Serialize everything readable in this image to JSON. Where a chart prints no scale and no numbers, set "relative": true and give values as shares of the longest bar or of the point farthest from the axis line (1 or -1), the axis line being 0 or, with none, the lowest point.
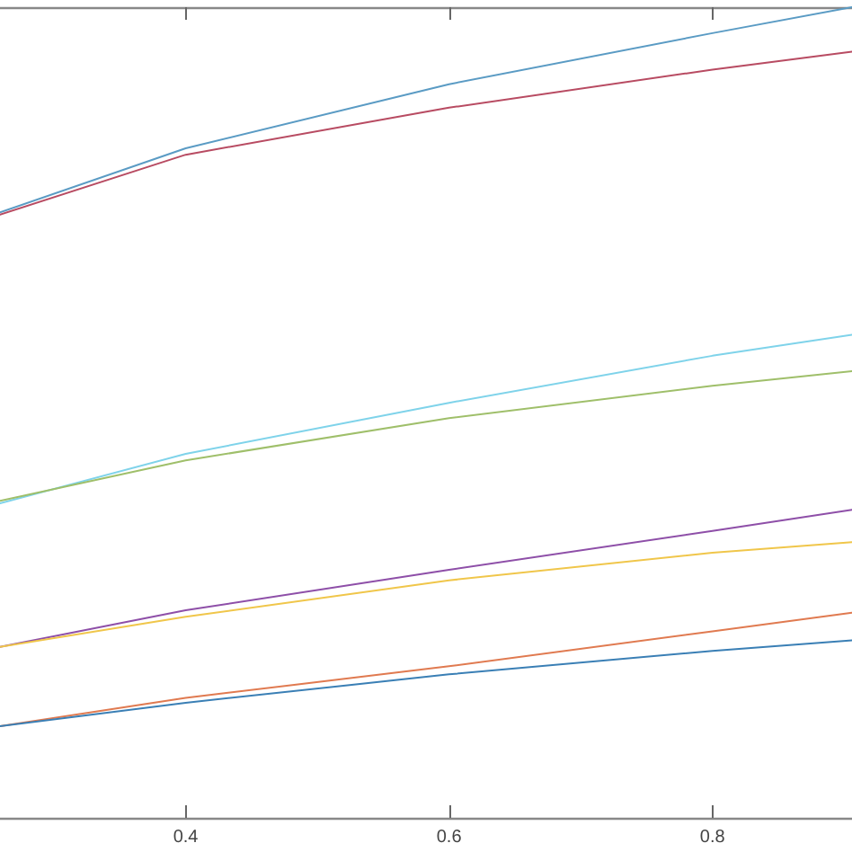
{
  "chart_data": {
    "type": "line",
    "relative": true,
    "grid": false,
    "marker": "none",
    "line_style": "solid",
    "xlim": [
      0.259,
      0.906
    ],
    "xticks": [
      0.4,
      0.6,
      0.8
    ],
    "series": [
      {
        "color": "#5a9bc4",
        "x": [
          0.259,
          0.4,
          0.6,
          0.8,
          0.906
        ],
        "values": [
          0.747,
          0.826,
          0.905,
          0.968,
          1
        ]
      },
      {
        "color": "#b84b62",
        "x": [
          0.259,
          0.4,
          0.6,
          0.8,
          0.906
        ],
        "values": [
          0.744,
          0.818,
          0.876,
          0.923,
          0.945
        ]
      },
      {
        "color": "#7fd3ea",
        "x": [
          0.259,
          0.4,
          0.6,
          0.8,
          0.906
        ],
        "values": [
          0.388,
          0.449,
          0.512,
          0.57,
          0.596
        ]
      },
      {
        "color": "#9fbf6a",
        "x": [
          0.259,
          0.4,
          0.6,
          0.8,
          0.906
        ],
        "values": [
          0.391,
          0.441,
          0.493,
          0.533,
          0.551
        ]
      },
      {
        "color": "#8e4fa8",
        "x": [
          0.259,
          0.4,
          0.6,
          0.8,
          0.906
        ],
        "values": [
          0.211,
          0.256,
          0.306,
          0.354,
          0.38
        ]
      },
      {
        "color": "#f0c64a",
        "x": [
          0.259,
          0.4,
          0.6,
          0.8,
          0.906
        ],
        "values": [
          0.211,
          0.248,
          0.293,
          0.327,
          0.34
        ]
      },
      {
        "color": "#e07a50",
        "x": [
          0.259,
          0.4,
          0.6,
          0.8,
          0.906
        ],
        "values": [
          0.113,
          0.148,
          0.187,
          0.23,
          0.253
        ]
      },
      {
        "color": "#3a7fb5",
        "x": [
          0.259,
          0.4,
          0.6,
          0.8,
          0.906
        ],
        "values": [
          0.113,
          0.142,
          0.177,
          0.206,
          0.219
        ]
      }
    ]
  }
}
